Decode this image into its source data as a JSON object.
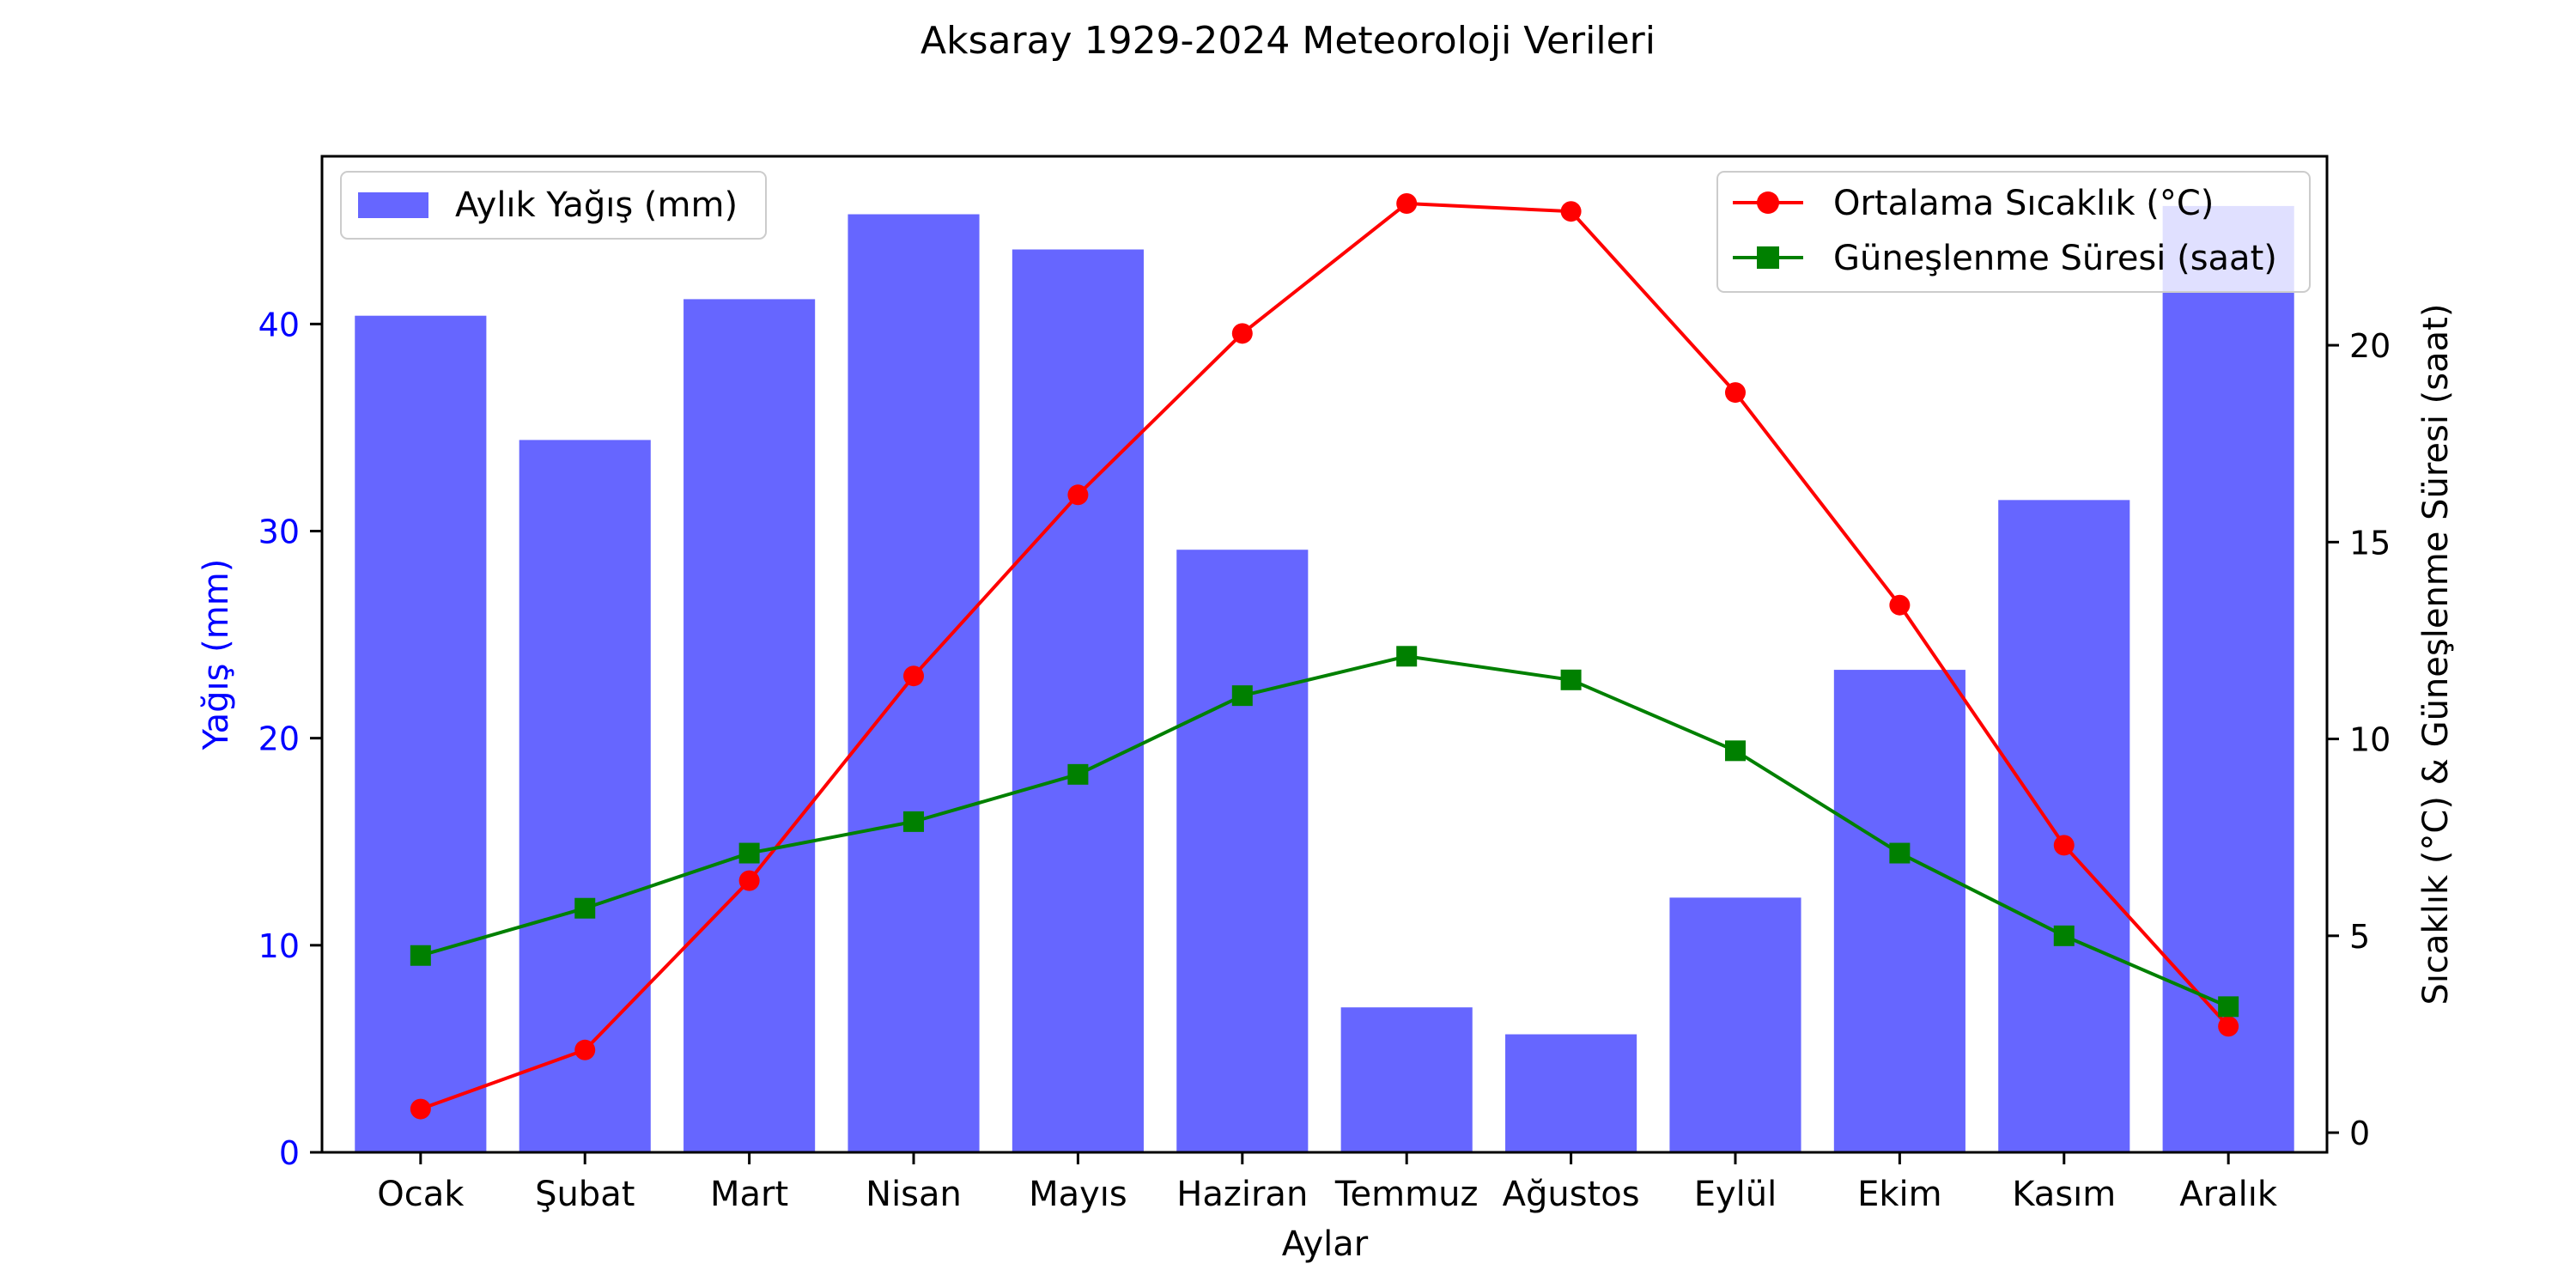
{
  "chart_data": {
    "type": "bar+line",
    "title": "Aksaray 1929-2024 Meteoroloji Verileri",
    "xlabel": "Aylar",
    "ylabel_left": "Yağış (mm)",
    "ylabel_right": "Sıcaklık (°C) & Güneşlenme Süresi (saat)",
    "categories": [
      "Ocak",
      "Şubat",
      "Mart",
      "Nisan",
      "Mayıs",
      "Haziran",
      "Temmuz",
      "Ağustos",
      "Eylül",
      "Ekim",
      "Kasım",
      "Aralık"
    ],
    "left_axis": {
      "range": [
        0,
        48.1
      ],
      "ticks": [
        0,
        10,
        20,
        30,
        40
      ]
    },
    "right_axis": {
      "range": [
        -0.5,
        24.8
      ],
      "ticks": [
        0,
        5,
        10,
        15,
        20
      ]
    },
    "bars": {
      "name": "Aylık Yağış (mm)",
      "axis": "left",
      "color": "#6666ff",
      "values": [
        40.4,
        34.4,
        41.2,
        45.3,
        43.6,
        29.1,
        7.0,
        5.7,
        12.3,
        23.3,
        31.5,
        45.7
      ]
    },
    "series": [
      {
        "name": "Ortalama Sıcaklık (°C)",
        "axis": "right",
        "color": "#ff0000",
        "marker": "circle",
        "values": [
          0.6,
          2.1,
          6.4,
          11.6,
          16.2,
          20.3,
          23.6,
          23.4,
          18.8,
          13.4,
          7.3,
          2.7
        ]
      },
      {
        "name": "Güneşlenme Süresi (saat)",
        "axis": "right",
        "color": "#008000",
        "marker": "square",
        "values": [
          4.5,
          5.7,
          7.1,
          7.9,
          9.1,
          11.1,
          12.1,
          11.5,
          9.7,
          7.1,
          5.0,
          3.2
        ]
      }
    ],
    "legends": [
      "upper left",
      "upper right"
    ],
    "grid": false
  }
}
